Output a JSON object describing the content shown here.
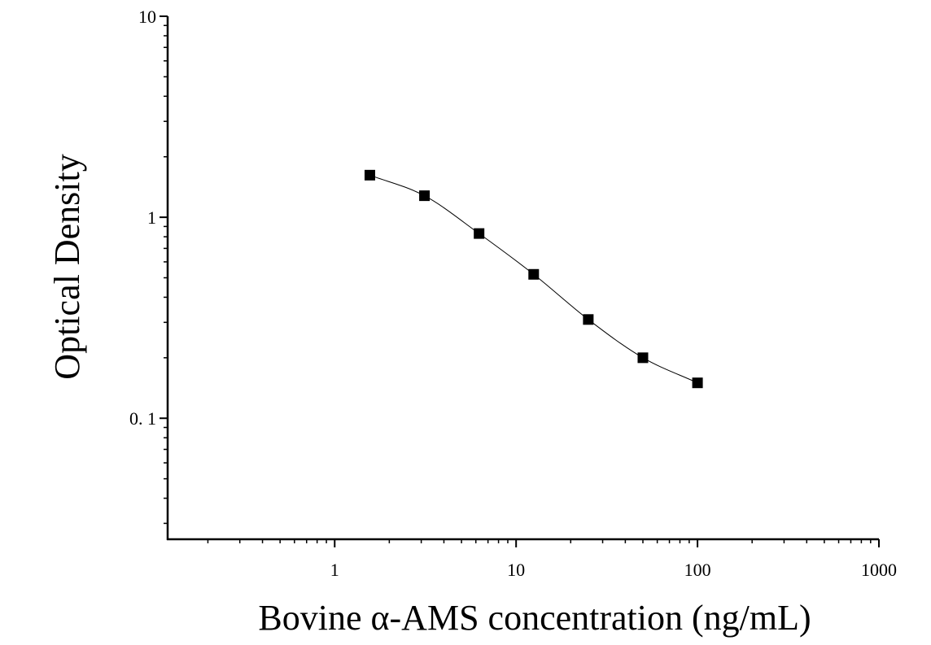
{
  "chart_data": {
    "type": "scatter",
    "title": "",
    "xlabel": "Bovine α-AMS concentration (ng/mL)",
    "ylabel": "Optical Density",
    "x_scale": "log",
    "y_scale": "log",
    "xlim": [
      0.12,
      1000
    ],
    "ylim": [
      0.025,
      10
    ],
    "x_ticks": [
      {
        "value": 1,
        "label": "1"
      },
      {
        "value": 10,
        "label": "10"
      },
      {
        "value": 100,
        "label": "100"
      },
      {
        "value": 1000,
        "label": "1000"
      }
    ],
    "y_ticks": [
      {
        "value": 0.1,
        "label": "0. 1"
      },
      {
        "value": 1,
        "label": "1"
      },
      {
        "value": 10,
        "label": "10"
      }
    ],
    "grid": false,
    "legend": "none",
    "marker_color": "#000000",
    "curve_color": "#000000",
    "series": [
      {
        "x": [
          1.5625,
          3.125,
          6.25,
          12.5,
          25,
          50,
          100
        ],
        "y": [
          1.62,
          1.28,
          0.83,
          0.52,
          0.31,
          0.2,
          0.15
        ]
      }
    ]
  }
}
